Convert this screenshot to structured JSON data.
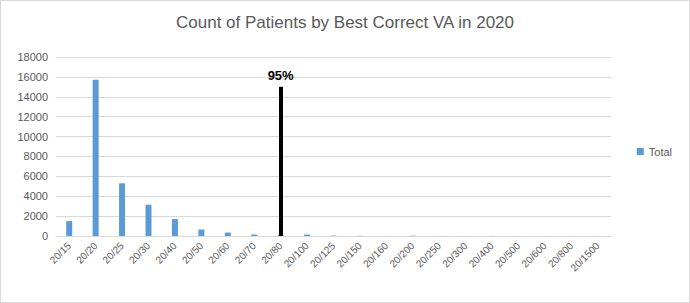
{
  "chart_data": {
    "type": "bar",
    "title": "Count of Patients by Best Correct VA in 2020",
    "categories": [
      "20/15",
      "20/20",
      "20/25",
      "20/30",
      "20/40",
      "20/50",
      "20/60",
      "20/70",
      "20/80",
      "20/100",
      "20/125",
      "20/150",
      "20/160",
      "20/200",
      "20/250",
      "20/300",
      "20/400",
      "20/500",
      "20/600",
      "20/800",
      "20/1500"
    ],
    "series": [
      {
        "name": "Total",
        "color": "#5b9bd5",
        "values": [
          1500,
          15700,
          5300,
          3150,
          1700,
          650,
          350,
          150,
          100,
          150,
          40,
          20,
          5,
          30,
          10,
          5,
          10,
          5,
          5,
          5,
          5
        ]
      }
    ],
    "ylim": [
      0,
      18000
    ],
    "yticks": [
      0,
      2000,
      4000,
      6000,
      8000,
      10000,
      12000,
      14000,
      16000,
      18000
    ],
    "grid": true,
    "legend": "right",
    "annotations": [
      {
        "text": "95%",
        "x": "20/80",
        "y": 15000,
        "color": "#000000"
      }
    ]
  }
}
